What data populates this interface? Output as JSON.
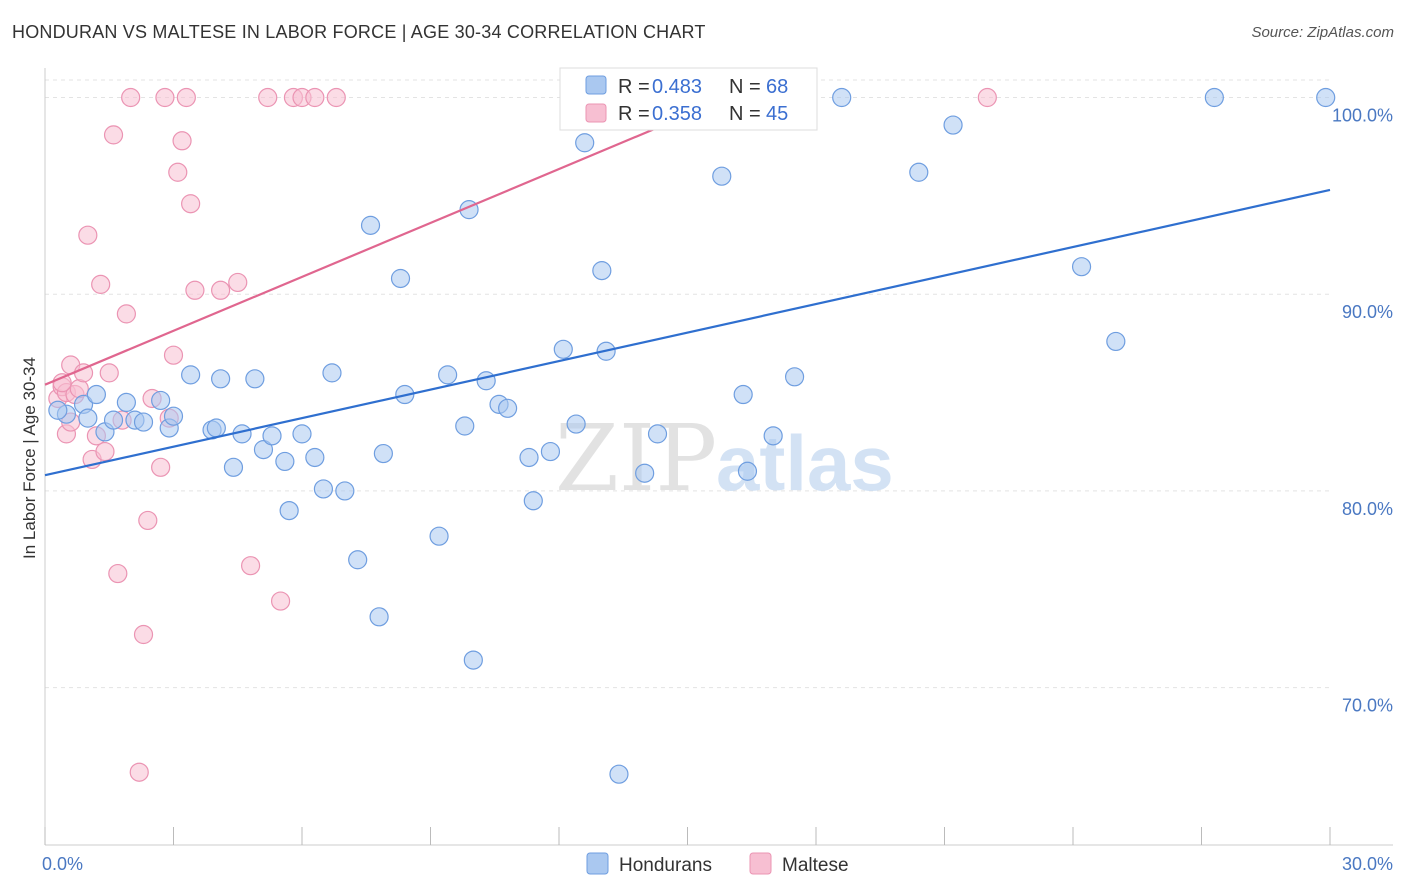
{
  "title": "HONDURAN VS MALTESE IN LABOR FORCE | AGE 30-34 CORRELATION CHART",
  "source": "Source: ZipAtlas.com",
  "watermark": {
    "zip": "ZIP",
    "atlas": "atlas"
  },
  "colors": {
    "hondurans_fill": "#aac8f0",
    "hondurans_stroke": "#6f9ee0",
    "hondurans_line": "#2f6fcf",
    "maltese_fill": "#f7bfd2",
    "maltese_stroke": "#eb94b3",
    "maltese_line": "#e0668f",
    "tick_label": "#4a78c2"
  },
  "legend": {
    "rows": [
      {
        "r_label": "R = ",
        "r_value": "0.483",
        "n_label": "N = ",
        "n_value": "68"
      },
      {
        "r_label": "R = ",
        "r_value": "0.358",
        "n_label": "N = ",
        "n_value": "45"
      }
    ]
  },
  "chart_data": {
    "type": "scatter",
    "title": "HONDURAN VS MALTESE IN LABOR FORCE | AGE 30-34 CORRELATION CHART",
    "xlabel": "",
    "ylabel": "In Labor Force | Age 30-34",
    "xlim": [
      0,
      30
    ],
    "ylim": [
      62,
      101.5
    ],
    "x_tick_labels": [
      "0.0%",
      "30.0%"
    ],
    "y_ticks": [
      70,
      80,
      90,
      100
    ],
    "y_tick_labels": [
      "70.0%",
      "80.0%",
      "90.0%",
      "100.0%"
    ],
    "grid": true,
    "legend_position": "top-center",
    "series": [
      {
        "name": "Hondurans",
        "trend": {
          "x": [
            0,
            30
          ],
          "y": [
            80.8,
            95.3
          ]
        },
        "points": [
          [
            0.5,
            83.9
          ],
          [
            0.9,
            84.4
          ],
          [
            1.2,
            84.9
          ],
          [
            1.4,
            83.0
          ],
          [
            1.6,
            83.6
          ],
          [
            1.9,
            84.5
          ],
          [
            2.1,
            83.6
          ],
          [
            2.3,
            83.5
          ],
          [
            2.9,
            83.2
          ],
          [
            3.0,
            83.8
          ],
          [
            3.4,
            85.9
          ],
          [
            3.9,
            83.1
          ],
          [
            4.0,
            83.2
          ],
          [
            4.1,
            85.7
          ],
          [
            4.4,
            81.2
          ],
          [
            4.6,
            82.9
          ],
          [
            4.9,
            85.7
          ],
          [
            5.1,
            82.1
          ],
          [
            5.3,
            82.8
          ],
          [
            5.6,
            81.5
          ],
          [
            5.7,
            79.0
          ],
          [
            6.0,
            82.9
          ],
          [
            6.3,
            81.7
          ],
          [
            6.5,
            80.1
          ],
          [
            6.7,
            86.0
          ],
          [
            7.0,
            80.0
          ],
          [
            7.3,
            76.5
          ],
          [
            7.6,
            93.5
          ],
          [
            7.8,
            73.6
          ],
          [
            7.9,
            81.9
          ],
          [
            8.3,
            90.8
          ],
          [
            8.4,
            84.9
          ],
          [
            9.2,
            77.7
          ],
          [
            9.4,
            85.9
          ],
          [
            9.8,
            83.3
          ],
          [
            9.9,
            94.3
          ],
          [
            10.0,
            71.4
          ],
          [
            10.3,
            85.6
          ],
          [
            10.6,
            84.4
          ],
          [
            10.8,
            84.2
          ],
          [
            11.3,
            81.7
          ],
          [
            11.4,
            79.5
          ],
          [
            11.8,
            82.0
          ],
          [
            12.1,
            87.2
          ],
          [
            12.4,
            83.4
          ],
          [
            12.6,
            97.7
          ],
          [
            13.0,
            91.2
          ],
          [
            13.1,
            87.1
          ],
          [
            13.4,
            65.6
          ],
          [
            14.0,
            80.9
          ],
          [
            14.3,
            82.9
          ],
          [
            14.8,
            100.0
          ],
          [
            15.0,
            99.0
          ],
          [
            15.8,
            96.0
          ],
          [
            16.3,
            84.9
          ],
          [
            16.4,
            81.0
          ],
          [
            17.0,
            82.8
          ],
          [
            17.5,
            85.8
          ],
          [
            18.6,
            100.0
          ],
          [
            20.4,
            96.2
          ],
          [
            21.2,
            98.6
          ],
          [
            24.2,
            91.4
          ],
          [
            25.0,
            87.6
          ],
          [
            27.3,
            100.0
          ],
          [
            29.9,
            100.0
          ],
          [
            0.3,
            84.1
          ],
          [
            2.7,
            84.6
          ],
          [
            1.0,
            83.7
          ]
        ]
      },
      {
        "name": "Maltese",
        "trend": {
          "x": [
            0,
            16.2
          ],
          "y": [
            85.4,
            100.2
          ]
        },
        "points": [
          [
            0.3,
            84.7
          ],
          [
            0.4,
            85.3
          ],
          [
            0.5,
            85.0
          ],
          [
            0.5,
            82.9
          ],
          [
            0.6,
            86.4
          ],
          [
            0.6,
            83.5
          ],
          [
            0.7,
            84.9
          ],
          [
            0.8,
            85.2
          ],
          [
            0.9,
            86.0
          ],
          [
            1.0,
            93.0
          ],
          [
            1.1,
            81.6
          ],
          [
            1.2,
            82.8
          ],
          [
            1.3,
            90.5
          ],
          [
            1.4,
            82.0
          ],
          [
            1.5,
            86.0
          ],
          [
            1.6,
            98.1
          ],
          [
            1.7,
            75.8
          ],
          [
            1.8,
            83.6
          ],
          [
            1.9,
            89.0
          ],
          [
            2.0,
            100.0
          ],
          [
            2.2,
            65.7
          ],
          [
            2.3,
            72.7
          ],
          [
            2.4,
            78.5
          ],
          [
            2.5,
            84.7
          ],
          [
            2.7,
            81.2
          ],
          [
            2.8,
            100.0
          ],
          [
            2.9,
            83.7
          ],
          [
            3.0,
            86.9
          ],
          [
            3.1,
            96.2
          ],
          [
            3.2,
            97.8
          ],
          [
            3.3,
            100.0
          ],
          [
            3.4,
            94.6
          ],
          [
            3.5,
            90.2
          ],
          [
            4.1,
            90.2
          ],
          [
            4.5,
            90.6
          ],
          [
            4.8,
            76.2
          ],
          [
            5.2,
            100.0
          ],
          [
            5.5,
            74.4
          ],
          [
            5.8,
            100.0
          ],
          [
            6.0,
            100.0
          ],
          [
            6.3,
            100.0
          ],
          [
            6.8,
            100.0
          ],
          [
            14.8,
            100.0
          ],
          [
            22.0,
            100.0
          ],
          [
            0.4,
            85.5
          ]
        ]
      }
    ]
  }
}
